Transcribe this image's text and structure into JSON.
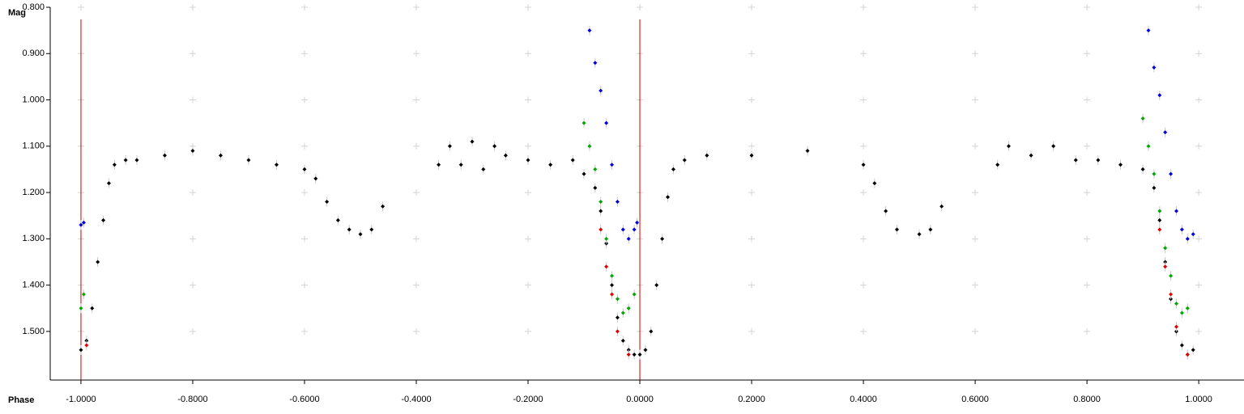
{
  "chart_data": {
    "type": "scatter",
    "y_label": "Mag",
    "x_label": "Phase",
    "xlim": [
      -1.055,
      1.081
    ],
    "ylim": [
      0.8,
      1.605
    ],
    "y_inverted": true,
    "grid": true,
    "xticks": [
      {
        "value": -1.0,
        "label": "-1.0000"
      },
      {
        "value": -0.8,
        "label": "-0.8000"
      },
      {
        "value": -0.6,
        "label": "-0.6000"
      },
      {
        "value": -0.4,
        "label": "-0.4000"
      },
      {
        "value": -0.2,
        "label": "-0.2000"
      },
      {
        "value": 0,
        "label": "0.0000"
      },
      {
        "value": 0.2,
        "label": "0.2000"
      },
      {
        "value": 0.4,
        "label": "0.4000"
      },
      {
        "value": 0.6,
        "label": "0.6000"
      },
      {
        "value": 0.8,
        "label": "0.8000"
      },
      {
        "value": 1.0,
        "label": "1.0000"
      }
    ],
    "yticks": [
      {
        "value": 0.8,
        "label": "0.800"
      },
      {
        "value": 0.9,
        "label": "0.900"
      },
      {
        "value": 1.0,
        "label": "1.000"
      },
      {
        "value": 1.1,
        "label": "1.100"
      },
      {
        "value": 1.2,
        "label": "1.200"
      },
      {
        "value": 1.3,
        "label": "1.300"
      },
      {
        "value": 1.4,
        "label": "1.400"
      },
      {
        "value": 1.5,
        "label": "1.500"
      }
    ],
    "vlines": [
      -1.0,
      0
    ],
    "vline_color": "#cc0000",
    "series": [
      {
        "color": "#000000",
        "x": [
          -1.0,
          -0.99,
          -0.98,
          -0.97,
          -0.96,
          -0.95,
          -0.94,
          -0.92,
          -0.9,
          -0.85,
          -0.8,
          -0.75,
          -0.7,
          -0.65,
          -0.6,
          -0.58,
          -0.56,
          -0.54,
          -0.52,
          -0.5,
          -0.48,
          -0.46,
          -0.36,
          -0.34,
          -0.32,
          -0.3,
          -0.28,
          -0.26,
          -0.24,
          -0.2,
          -0.16,
          -0.12,
          -0.1,
          -0.08,
          -0.07,
          -0.06,
          -0.05,
          -0.04,
          -0.03,
          -0.02,
          -0.01,
          0.0,
          0.01,
          0.02,
          0.03,
          0.04,
          0.05,
          0.06,
          0.08,
          0.12,
          0.2,
          0.3,
          0.4,
          0.42,
          0.44,
          0.46,
          0.5,
          0.52,
          0.54,
          0.64,
          0.66,
          0.7,
          0.74,
          0.78,
          0.82,
          0.86,
          0.9,
          0.92,
          0.93,
          0.94,
          0.95,
          0.96,
          0.97,
          0.98,
          0.99
        ],
        "values": [
          1.54,
          1.52,
          1.45,
          1.35,
          1.26,
          1.18,
          1.14,
          1.13,
          1.13,
          1.12,
          1.11,
          1.12,
          1.13,
          1.14,
          1.15,
          1.17,
          1.22,
          1.26,
          1.28,
          1.29,
          1.28,
          1.23,
          1.14,
          1.1,
          1.14,
          1.09,
          1.15,
          1.1,
          1.12,
          1.13,
          1.14,
          1.13,
          1.16,
          1.19,
          1.24,
          1.31,
          1.4,
          1.47,
          1.52,
          1.54,
          1.55,
          1.55,
          1.54,
          1.5,
          1.4,
          1.3,
          1.21,
          1.15,
          1.13,
          1.12,
          1.12,
          1.11,
          1.14,
          1.18,
          1.24,
          1.28,
          1.29,
          1.28,
          1.23,
          1.14,
          1.1,
          1.12,
          1.1,
          1.13,
          1.13,
          1.14,
          1.15,
          1.19,
          1.26,
          1.35,
          1.43,
          1.5,
          1.53,
          1.55,
          1.54
        ]
      },
      {
        "color": "#e00000",
        "x": [
          -0.99,
          -0.07,
          -0.06,
          -0.05,
          -0.04,
          -0.02,
          0.93,
          0.94,
          0.95,
          0.96,
          0.98
        ],
        "values": [
          1.53,
          1.28,
          1.36,
          1.42,
          1.5,
          1.55,
          1.28,
          1.36,
          1.42,
          1.49,
          1.55
        ]
      },
      {
        "color": "#00a800",
        "x": [
          -1.0,
          -0.995,
          -0.1,
          -0.09,
          -0.08,
          -0.07,
          -0.06,
          -0.05,
          -0.04,
          -0.03,
          -0.02,
          -0.01,
          0.9,
          0.91,
          0.92,
          0.93,
          0.94,
          0.95,
          0.96,
          0.97,
          0.98
        ],
        "values": [
          1.45,
          1.42,
          1.05,
          1.1,
          1.15,
          1.22,
          1.3,
          1.38,
          1.43,
          1.46,
          1.45,
          1.42,
          1.04,
          1.1,
          1.16,
          1.24,
          1.32,
          1.38,
          1.44,
          1.46,
          1.45
        ]
      },
      {
        "color": "#0000dd",
        "x": [
          -1.0,
          -0.995,
          -0.09,
          -0.08,
          -0.07,
          -0.06,
          -0.05,
          -0.04,
          -0.03,
          -0.02,
          -0.01,
          -0.005,
          0.91,
          0.92,
          0.93,
          0.94,
          0.95,
          0.96,
          0.97,
          0.98,
          0.99
        ],
        "values": [
          1.27,
          1.265,
          0.85,
          0.92,
          0.98,
          1.05,
          1.14,
          1.22,
          1.28,
          1.3,
          1.28,
          1.265,
          0.85,
          0.93,
          0.99,
          1.07,
          1.16,
          1.24,
          1.28,
          1.3,
          1.29
        ]
      }
    ]
  }
}
